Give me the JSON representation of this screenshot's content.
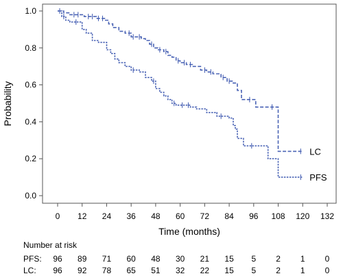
{
  "chart_data": {
    "type": "line",
    "title": "",
    "xlabel": "Time (months)",
    "ylabel": "Probability",
    "xlim": [
      -4,
      132
    ],
    "ylim": [
      0,
      1.0
    ],
    "x_ticks": [
      0,
      12,
      24,
      36,
      48,
      60,
      72,
      84,
      96,
      108,
      120,
      132
    ],
    "y_ticks": [
      0.0,
      0.2,
      0.4,
      0.6,
      0.8,
      1.0
    ],
    "y_tick_labels": [
      "0.0",
      "0.2",
      "0.4",
      "0.6",
      "0.8",
      "1.0"
    ],
    "grid": false,
    "line_color": "#4a63b5",
    "series": [
      {
        "name": "LC",
        "x": [
          0,
          3,
          6,
          9,
          13,
          16,
          19,
          23,
          25,
          27,
          30,
          33,
          36,
          41,
          43,
          45,
          47,
          49,
          52,
          54,
          56,
          58,
          60,
          63,
          66,
          70,
          73,
          76,
          80,
          83,
          86,
          88,
          90,
          97,
          108,
          120
        ],
        "y": [
          1.0,
          0.99,
          0.98,
          0.98,
          0.97,
          0.97,
          0.96,
          0.95,
          0.93,
          0.91,
          0.89,
          0.88,
          0.86,
          0.85,
          0.84,
          0.82,
          0.8,
          0.79,
          0.78,
          0.76,
          0.75,
          0.73,
          0.72,
          0.71,
          0.7,
          0.68,
          0.67,
          0.66,
          0.64,
          0.62,
          0.61,
          0.57,
          0.52,
          0.48,
          0.24,
          0.24
        ],
        "censor_x": [
          8,
          10,
          15,
          17,
          20,
          22,
          35,
          37,
          40,
          46,
          50,
          53,
          59,
          62,
          65,
          72,
          75,
          81,
          84,
          94,
          105,
          119
        ],
        "end_label": "LC"
      },
      {
        "name": "PFS",
        "x": [
          0,
          2,
          4,
          6,
          12,
          14,
          17,
          20,
          24,
          26,
          28,
          30,
          33,
          36,
          40,
          43,
          46,
          48,
          50,
          52,
          54,
          56,
          58,
          60,
          65,
          68,
          73,
          78,
          84,
          86,
          87,
          88,
          91,
          103,
          108,
          120
        ],
        "y": [
          1.0,
          0.97,
          0.95,
          0.94,
          0.9,
          0.88,
          0.84,
          0.83,
          0.79,
          0.77,
          0.74,
          0.72,
          0.7,
          0.68,
          0.67,
          0.64,
          0.62,
          0.58,
          0.56,
          0.54,
          0.52,
          0.5,
          0.49,
          0.49,
          0.48,
          0.47,
          0.45,
          0.43,
          0.42,
          0.38,
          0.36,
          0.31,
          0.27,
          0.2,
          0.1,
          0.1
        ],
        "censor_x": [
          1,
          3,
          9,
          37,
          47,
          57,
          61,
          64,
          80,
          95,
          119
        ],
        "end_label": "PFS"
      }
    ],
    "risk_table": {
      "heading": "Number at risk",
      "times": [
        0,
        12,
        24,
        36,
        48,
        60,
        72,
        84,
        96,
        108,
        120,
        132
      ],
      "rows": [
        {
          "label": "PFS:",
          "values": [
            "96",
            "89",
            "71",
            "60",
            "48",
            "30",
            "21",
            "15",
            "5",
            "2",
            "1",
            "0"
          ]
        },
        {
          "label": "LC:",
          "values": [
            "96",
            "92",
            "78",
            "65",
            "51",
            "32",
            "22",
            "15",
            "5",
            "2",
            "1",
            "0"
          ]
        }
      ]
    }
  }
}
